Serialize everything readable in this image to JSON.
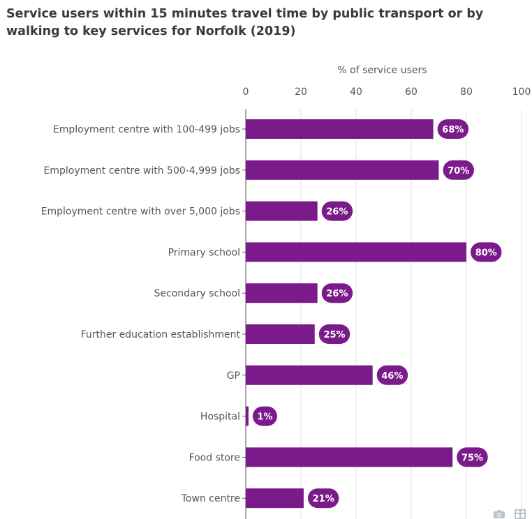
{
  "title": "Service users within 15 minutes travel time by public transport or by walking to key services for Norfolk (2019)",
  "colors": {
    "bar": "#7b1a8b",
    "label_bg": "#7b1a8b",
    "grid": "#e3e3e3",
    "axis": "#555555"
  },
  "toolbar": {
    "icons": [
      "camera-icon",
      "table-icon"
    ]
  },
  "chart_data": {
    "type": "bar",
    "orientation": "horizontal",
    "title": "Service users within 15 minutes travel time by public transport or by walking to key services for Norfolk (2019)",
    "xlabel": "% of service users",
    "xlim": [
      0,
      100
    ],
    "xticks": [
      0,
      20,
      40,
      60,
      80,
      100
    ],
    "grid": true,
    "axis_position": "top",
    "categories": [
      "Employment centre with 100-499 jobs",
      "Employment centre with 500-4,999 jobs",
      "Employment centre with over 5,000 jobs",
      "Primary school",
      "Secondary school",
      "Further education establishment",
      "GP",
      "Hospital",
      "Food store",
      "Town centre"
    ],
    "values": [
      68,
      70,
      26,
      80,
      26,
      25,
      46,
      1,
      75,
      21
    ],
    "data_labels": [
      "68%",
      "70%",
      "26%",
      "80%",
      "26%",
      "25%",
      "46%",
      "1%",
      "75%",
      "21%"
    ]
  }
}
